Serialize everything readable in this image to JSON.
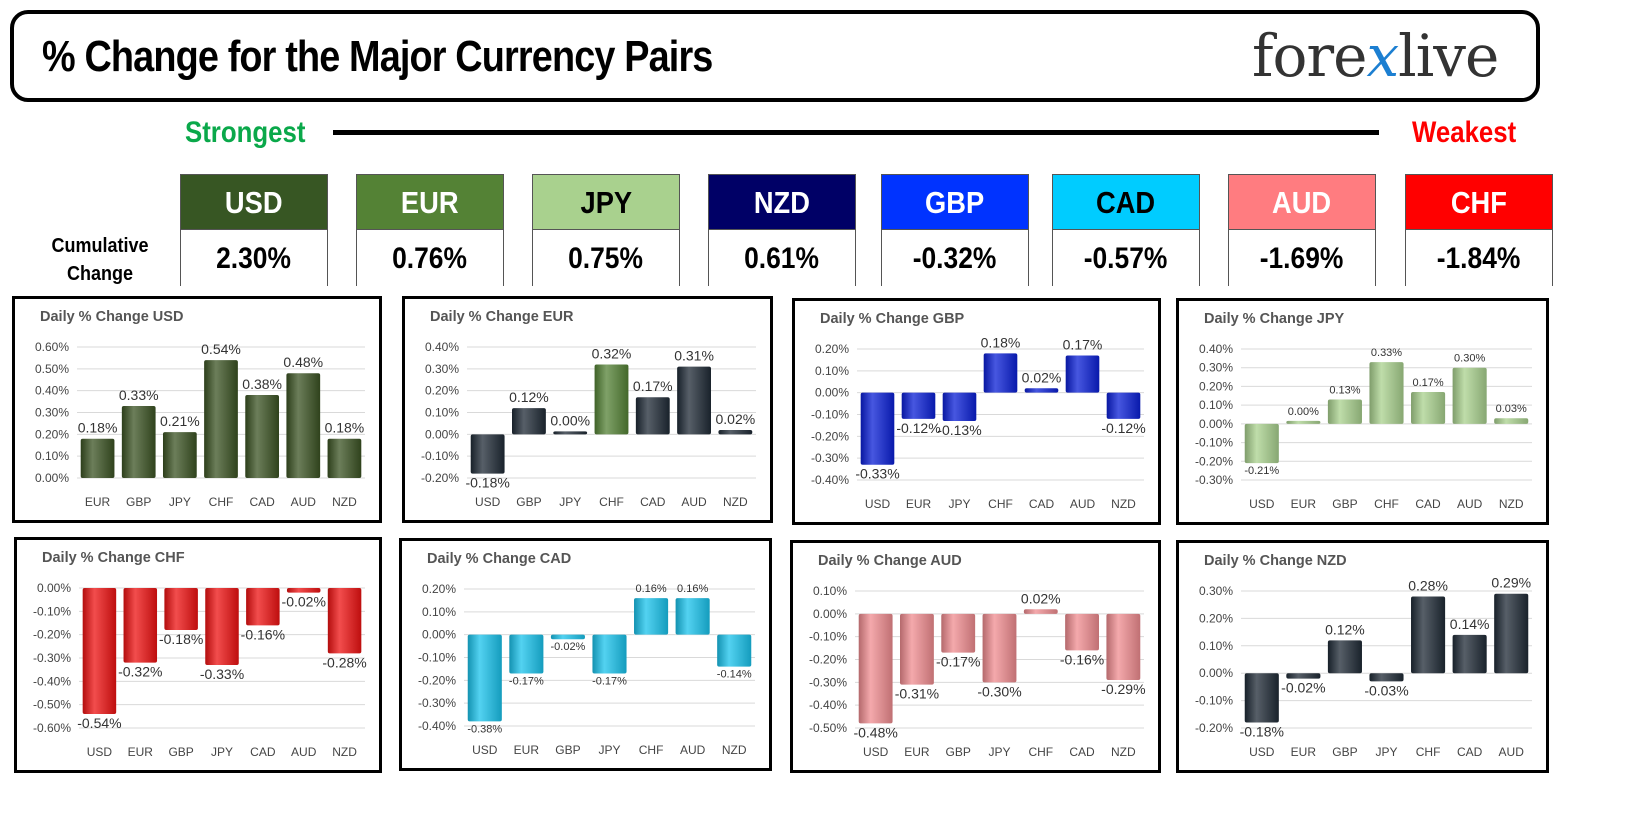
{
  "header": {
    "title": "% Change for the Major Currency Pairs",
    "logo_pre": "fore",
    "logo_x": "x",
    "logo_post": "live"
  },
  "strength": {
    "strongest": "Strongest",
    "weakest": "Weakest"
  },
  "cumulative": {
    "label_line1": "Cumulative",
    "label_line2": "Change",
    "items": [
      {
        "name": "USD",
        "value": "2.30%",
        "color": "#375623",
        "text_color": "#ffffff"
      },
      {
        "name": "EUR",
        "value": "0.76%",
        "color": "#548235",
        "text_color": "#ffffff"
      },
      {
        "name": "JPY",
        "value": "0.75%",
        "color": "#a9d18e",
        "text_color": "#000000"
      },
      {
        "name": "NZD",
        "value": "0.61%",
        "color": "#000066",
        "text_color": "#ffffff"
      },
      {
        "name": "GBP",
        "value": "-0.32%",
        "color": "#0033ff",
        "text_color": "#ffffff"
      },
      {
        "name": "CAD",
        "value": "-0.57%",
        "color": "#00ccff",
        "text_color": "#000000"
      },
      {
        "name": "AUD",
        "value": "-1.69%",
        "color": "#ff7c80",
        "text_color": "#ffffff"
      },
      {
        "name": "CHF",
        "value": "-1.84%",
        "color": "#ff0000",
        "text_color": "#ffffff"
      }
    ]
  },
  "chart_data": [
    {
      "type": "bar",
      "title": "Daily % Change USD",
      "color": "#3b5323",
      "categories": [
        "EUR",
        "GBP",
        "JPY",
        "CHF",
        "CAD",
        "AUD",
        "NZD"
      ],
      "values": [
        0.18,
        0.33,
        0.21,
        0.54,
        0.38,
        0.48,
        0.18
      ],
      "labels": [
        "0.18%",
        "0.33%",
        "0.21%",
        "0.54%",
        "0.38%",
        "0.48%",
        "0.18%"
      ],
      "ylim": [
        0,
        0.6
      ],
      "ticks": [
        "0.00%",
        "0.10%",
        "0.20%",
        "0.30%",
        "0.40%",
        "0.50%",
        "0.60%"
      ],
      "label_size": 14
    },
    {
      "type": "bar",
      "title": "Daily % Change EUR",
      "color": "#1f2a36",
      "categories": [
        "USD",
        "GBP",
        "JPY",
        "CHF",
        "CAD",
        "AUD",
        "NZD"
      ],
      "values": [
        -0.18,
        0.12,
        0.0,
        0.32,
        0.17,
        0.31,
        0.02
      ],
      "labels": [
        "-0.18%",
        "0.12%",
        "0.00%",
        "0.32%",
        "0.17%",
        "0.31%",
        "0.02%"
      ],
      "bar_colors": [
        "#1f2a36",
        "#1f2a36",
        "#1f2a36",
        "#548235",
        "#1f2a36",
        "#1f2a36",
        "#1f2a36"
      ],
      "ylim": [
        -0.2,
        0.4
      ],
      "ticks": [
        "-0.20%",
        "-0.10%",
        "0.00%",
        "0.10%",
        "0.20%",
        "0.30%",
        "0.40%"
      ],
      "label_size": 14
    },
    {
      "type": "bar",
      "title": "Daily % Change GBP",
      "color": "#0a1fd6",
      "categories": [
        "USD",
        "EUR",
        "JPY",
        "CHF",
        "CAD",
        "AUD",
        "NZD"
      ],
      "values": [
        -0.33,
        -0.12,
        -0.13,
        0.18,
        0.02,
        0.17,
        -0.12
      ],
      "labels": [
        "-0.33%",
        "-0.12%",
        "-0.13%",
        "0.18%",
        "0.02%",
        "0.17%",
        "-0.12%"
      ],
      "ylim": [
        -0.4,
        0.2
      ],
      "ticks": [
        "-0.40%",
        "-0.30%",
        "-0.20%",
        "-0.10%",
        "0.00%",
        "0.10%",
        "0.20%"
      ],
      "label_size": 14
    },
    {
      "type": "bar",
      "title": "Daily % Change JPY",
      "color": "#a9d18e",
      "categories": [
        "USD",
        "EUR",
        "GBP",
        "CHF",
        "CAD",
        "AUD",
        "NZD"
      ],
      "values": [
        -0.21,
        0.0,
        0.13,
        0.33,
        0.17,
        0.3,
        0.03
      ],
      "labels": [
        "-0.21%",
        "0.00%",
        "0.13%",
        "0.33%",
        "0.17%",
        "0.30%",
        "0.03%"
      ],
      "ylim": [
        -0.3,
        0.4
      ],
      "ticks": [
        "-0.30%",
        "-0.20%",
        "-0.10%",
        "0.00%",
        "0.10%",
        "0.20%",
        "0.30%",
        "0.40%"
      ],
      "label_size": 11
    },
    {
      "type": "bar",
      "title": "Daily % Change CHF",
      "color": "#ee1111",
      "categories": [
        "USD",
        "EUR",
        "GBP",
        "JPY",
        "CAD",
        "AUD",
        "NZD"
      ],
      "values": [
        -0.54,
        -0.32,
        -0.18,
        -0.33,
        -0.16,
        -0.02,
        -0.28
      ],
      "labels": [
        "-0.54%",
        "-0.32%",
        "-0.18%",
        "-0.33%",
        "-0.16%",
        "-0.02%",
        "-0.28%"
      ],
      "ylim": [
        -0.6,
        0.0
      ],
      "ticks": [
        "-0.60%",
        "-0.50%",
        "-0.40%",
        "-0.30%",
        "-0.20%",
        "-0.10%",
        "0.00%"
      ],
      "label_size": 14
    },
    {
      "type": "bar",
      "title": "Daily % Change CAD",
      "color": "#19c3ec",
      "categories": [
        "USD",
        "EUR",
        "GBP",
        "JPY",
        "CHF",
        "AUD",
        "NZD"
      ],
      "values": [
        -0.38,
        -0.17,
        -0.02,
        -0.17,
        0.16,
        0.16,
        -0.14
      ],
      "labels": [
        "-0.38%",
        "-0.17%",
        "-0.02%",
        "-0.17%",
        "0.16%",
        "0.16%",
        "-0.14%"
      ],
      "ylim": [
        -0.4,
        0.2
      ],
      "ticks": [
        "-0.40%",
        "-0.30%",
        "-0.20%",
        "-0.10%",
        "0.00%",
        "0.10%",
        "0.20%"
      ],
      "label_size": 11
    },
    {
      "type": "bar",
      "title": "Daily % Change AUD",
      "color": "#f08c90",
      "categories": [
        "USD",
        "EUR",
        "GBP",
        "JPY",
        "CHF",
        "CAD",
        "NZD"
      ],
      "values": [
        -0.48,
        -0.31,
        -0.17,
        -0.3,
        0.02,
        -0.16,
        -0.29
      ],
      "labels": [
        "-0.48%",
        "-0.31%",
        "-0.17%",
        "-0.30%",
        "0.02%",
        "-0.16%",
        "-0.29%"
      ],
      "ylim": [
        -0.5,
        0.1
      ],
      "ticks": [
        "-0.50%",
        "-0.40%",
        "-0.30%",
        "-0.20%",
        "-0.10%",
        "0.00%",
        "0.10%"
      ],
      "label_size": 14
    },
    {
      "type": "bar",
      "title": "Daily % Change NZD",
      "color": "#1f2a36",
      "categories": [
        "USD",
        "EUR",
        "GBP",
        "JPY",
        "CHF",
        "CAD",
        "AUD"
      ],
      "values": [
        -0.18,
        -0.02,
        0.12,
        -0.03,
        0.28,
        0.14,
        0.29
      ],
      "labels": [
        "-0.18%",
        "-0.02%",
        "0.12%",
        "-0.03%",
        "0.28%",
        "0.14%",
        "0.29%"
      ],
      "ylim": [
        -0.2,
        0.3
      ],
      "ticks": [
        "-0.20%",
        "-0.10%",
        "0.00%",
        "0.10%",
        "0.20%",
        "0.30%"
      ],
      "label_size": 14
    }
  ]
}
